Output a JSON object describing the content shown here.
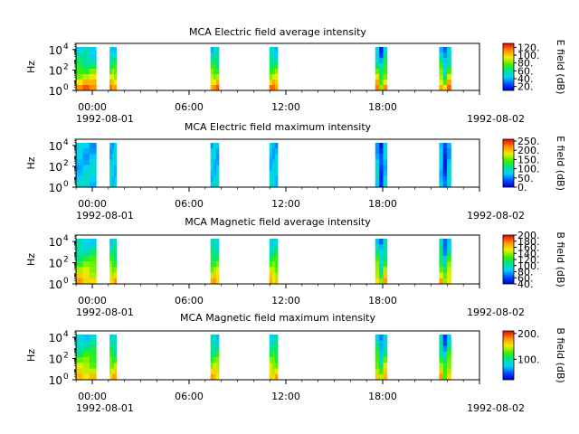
{
  "chart_data": [
    {
      "type": "heatmap",
      "title": "MCA  Electric field average intensity",
      "ylabel": "Hz",
      "y_ticks": [
        "10",
        "10",
        "10"
      ],
      "y_tick_exponents": [
        "0",
        "2",
        "4"
      ],
      "yscale": "log",
      "ylim_hz": [
        1,
        40000
      ],
      "x_tick_labels": [
        "00:00",
        "06:00",
        "12:00",
        "18:00",
        ""
      ],
      "x_date_labels": [
        "1992-08-01",
        "1992-08-02"
      ],
      "colorbar_label": "E field (dB)",
      "colorbar_ticks": [
        "120.",
        "100.",
        "80.",
        "60.",
        "40.",
        "20."
      ],
      "colorbar_range_db": [
        10,
        130
      ],
      "data_intervals_hours": [
        [
          0.0,
          1.2
        ],
        [
          2.0,
          2.4
        ],
        [
          8.0,
          8.5
        ],
        [
          11.5,
          12.0
        ],
        [
          17.8,
          18.5
        ],
        [
          21.6,
          22.3
        ]
      ]
    },
    {
      "type": "heatmap",
      "title": "MCA  Electric field maximum intensity",
      "ylabel": "Hz",
      "y_ticks": [
        "10",
        "10",
        "10"
      ],
      "y_tick_exponents": [
        "0",
        "2",
        "4"
      ],
      "yscale": "log",
      "ylim_hz": [
        1,
        40000
      ],
      "x_tick_labels": [
        "00:00",
        "06:00",
        "12:00",
        "18:00",
        ""
      ],
      "x_date_labels": [
        "1992-08-01",
        "1992-08-02"
      ],
      "colorbar_label": "E field (dB)",
      "colorbar_ticks": [
        "250.",
        "200.",
        "150.",
        "100.",
        "50.",
        "0."
      ],
      "colorbar_range_db": [
        0,
        260
      ],
      "data_intervals_hours": [
        [
          0.0,
          1.2
        ],
        [
          2.0,
          2.4
        ],
        [
          8.0,
          8.5
        ],
        [
          11.5,
          12.0
        ],
        [
          17.8,
          18.5
        ],
        [
          21.6,
          22.3
        ]
      ]
    },
    {
      "type": "heatmap",
      "title": "MCA  Magnetic field average intensity",
      "ylabel": "Hz",
      "y_ticks": [
        "10",
        "10",
        "10"
      ],
      "y_tick_exponents": [
        "0",
        "2",
        "4"
      ],
      "yscale": "log",
      "ylim_hz": [
        1,
        40000
      ],
      "x_tick_labels": [
        "00:00",
        "06:00",
        "12:00",
        "18:00",
        ""
      ],
      "x_date_labels": [
        "1992-08-01",
        "1992-08-02"
      ],
      "colorbar_label": "B field (dB)",
      "colorbar_ticks": [
        "200.",
        "180.",
        "160.",
        "140.",
        "120.",
        "100.",
        "80.",
        "60.",
        "40."
      ],
      "colorbar_range_db": [
        40,
        200
      ],
      "data_intervals_hours": [
        [
          0.0,
          1.2
        ],
        [
          2.0,
          2.4
        ],
        [
          8.0,
          8.5
        ],
        [
          11.5,
          12.0
        ],
        [
          17.8,
          18.5
        ],
        [
          21.6,
          22.3
        ]
      ]
    },
    {
      "type": "heatmap",
      "title": "MCA  Magnetic field maximum intensity",
      "ylabel": "Hz",
      "y_ticks": [
        "10",
        "10",
        "10"
      ],
      "y_tick_exponents": [
        "0",
        "2",
        "4"
      ],
      "yscale": "log",
      "ylim_hz": [
        1,
        40000
      ],
      "x_tick_labels": [
        "00:00",
        "06:00",
        "12:00",
        "18:00",
        ""
      ],
      "x_date_labels": [
        "1992-08-01",
        "1992-08-02"
      ],
      "colorbar_label": "B field (dB)",
      "colorbar_ticks": [
        "200.",
        "100."
      ],
      "colorbar_range_db": [
        20,
        210
      ],
      "data_intervals_hours": [
        [
          0.0,
          1.2
        ],
        [
          2.0,
          2.4
        ],
        [
          8.0,
          8.5
        ],
        [
          11.5,
          12.0
        ],
        [
          17.8,
          18.5
        ],
        [
          21.6,
          22.3
        ]
      ]
    }
  ]
}
